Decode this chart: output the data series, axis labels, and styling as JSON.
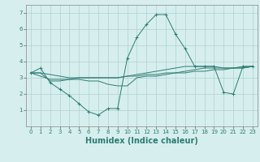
{
  "xlabel": "Humidex (Indice chaleur)",
  "x_values": [
    0,
    1,
    2,
    3,
    4,
    5,
    6,
    7,
    8,
    9,
    10,
    11,
    12,
    13,
    14,
    15,
    16,
    17,
    18,
    19,
    20,
    21,
    22,
    23
  ],
  "line1": [
    3.3,
    3.6,
    2.7,
    2.3,
    1.9,
    1.4,
    0.9,
    0.7,
    1.1,
    1.1,
    4.2,
    5.5,
    6.3,
    6.9,
    6.9,
    5.7,
    4.8,
    3.7,
    3.7,
    3.7,
    2.1,
    2.0,
    3.7,
    3.7
  ],
  "line2": [
    3.3,
    3.3,
    2.8,
    2.8,
    2.9,
    2.9,
    2.8,
    2.8,
    2.6,
    2.5,
    2.5,
    3.0,
    3.1,
    3.1,
    3.2,
    3.3,
    3.3,
    3.4,
    3.4,
    3.5,
    3.5,
    3.6,
    3.6,
    3.7
  ],
  "line3": [
    3.3,
    3.1,
    2.9,
    2.9,
    2.9,
    3.0,
    3.0,
    3.0,
    3.0,
    3.0,
    3.1,
    3.1,
    3.2,
    3.2,
    3.3,
    3.3,
    3.4,
    3.5,
    3.6,
    3.6,
    3.6,
    3.6,
    3.7,
    3.7
  ],
  "line4": [
    3.3,
    3.3,
    3.2,
    3.1,
    3.0,
    3.0,
    3.0,
    3.0,
    3.0,
    3.0,
    3.1,
    3.2,
    3.3,
    3.4,
    3.5,
    3.6,
    3.7,
    3.7,
    3.7,
    3.7,
    3.6,
    3.6,
    3.6,
    3.7
  ],
  "line_color": "#2e7d72",
  "bg_color": "#d6eeee",
  "grid_color": "#b0d0d0",
  "ylim": [
    0,
    7.5
  ],
  "yticks": [
    1,
    2,
    3,
    4,
    5,
    6,
    7
  ],
  "xlim": [
    -0.5,
    23.5
  ],
  "tick_fontsize": 5,
  "xlabel_fontsize": 7
}
